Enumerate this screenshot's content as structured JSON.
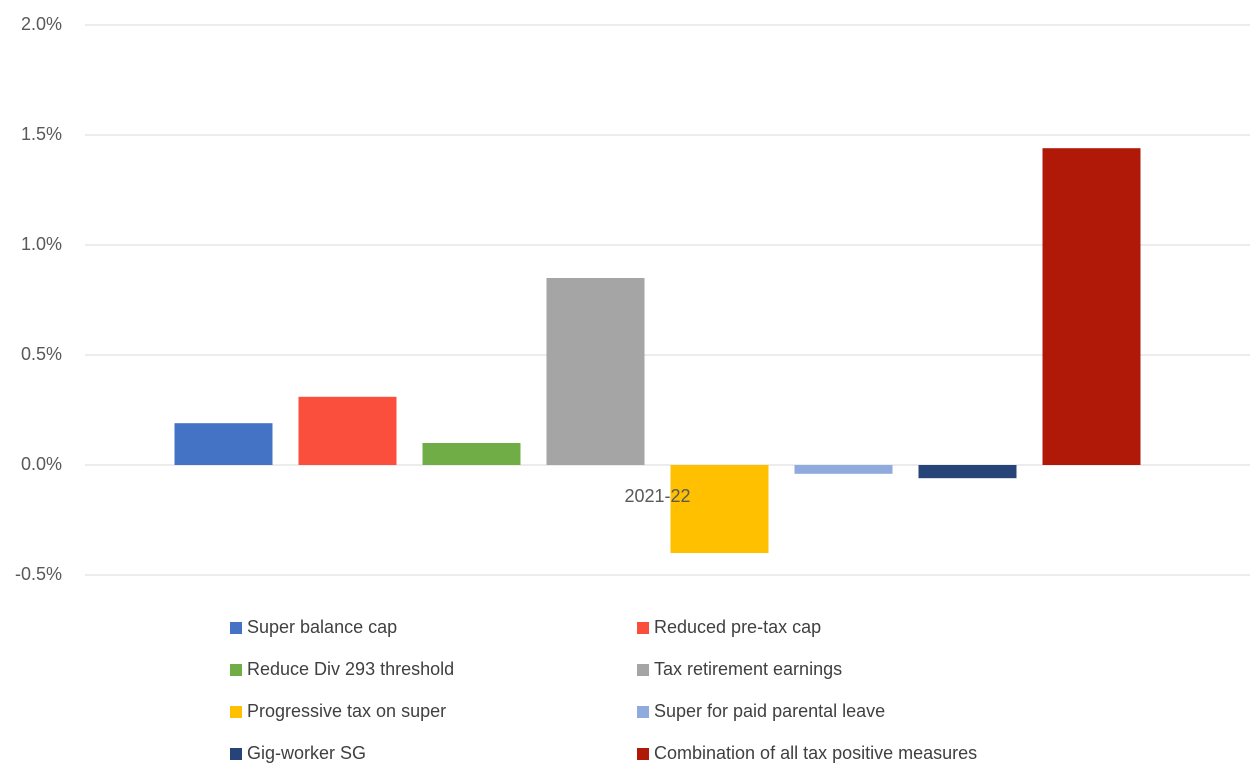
{
  "chart_data": {
    "type": "bar",
    "categories": [
      "2021-22"
    ],
    "series": [
      {
        "name": "Super balance cap",
        "color": "#4472c4",
        "values": [
          0.19
        ]
      },
      {
        "name": "Reduced pre-tax cap",
        "color": "#f94f3c",
        "values": [
          0.31
        ]
      },
      {
        "name": "Reduce Div 293 threshold",
        "color": "#70ad47",
        "values": [
          0.1
        ]
      },
      {
        "name": "Tax retirement earnings",
        "color": "#a5a5a5",
        "values": [
          0.85
        ]
      },
      {
        "name": "Progressive tax on super",
        "color": "#ffc000",
        "values": [
          -0.4
        ]
      },
      {
        "name": "Super for paid parental leave",
        "color": "#8faadc",
        "values": [
          -0.04
        ]
      },
      {
        "name": "Gig-worker SG",
        "color": "#264478",
        "values": [
          -0.06
        ]
      },
      {
        "name": "Combination of all tax positive measures",
        "color": "#b01807",
        "values": [
          1.44
        ]
      }
    ],
    "ylim": [
      -0.5,
      2.0
    ],
    "yticks": [
      {
        "value": -0.5,
        "label": "-0.5%"
      },
      {
        "value": 0,
        "label": "0.0%"
      },
      {
        "value": 0.5,
        "label": "0.5%"
      },
      {
        "value": 1.0,
        "label": "1.0%"
      },
      {
        "value": 1.5,
        "label": "1.5%"
      },
      {
        "value": 2.0,
        "label": "2.0%"
      }
    ],
    "grid": true,
    "legend": "bottom"
  }
}
